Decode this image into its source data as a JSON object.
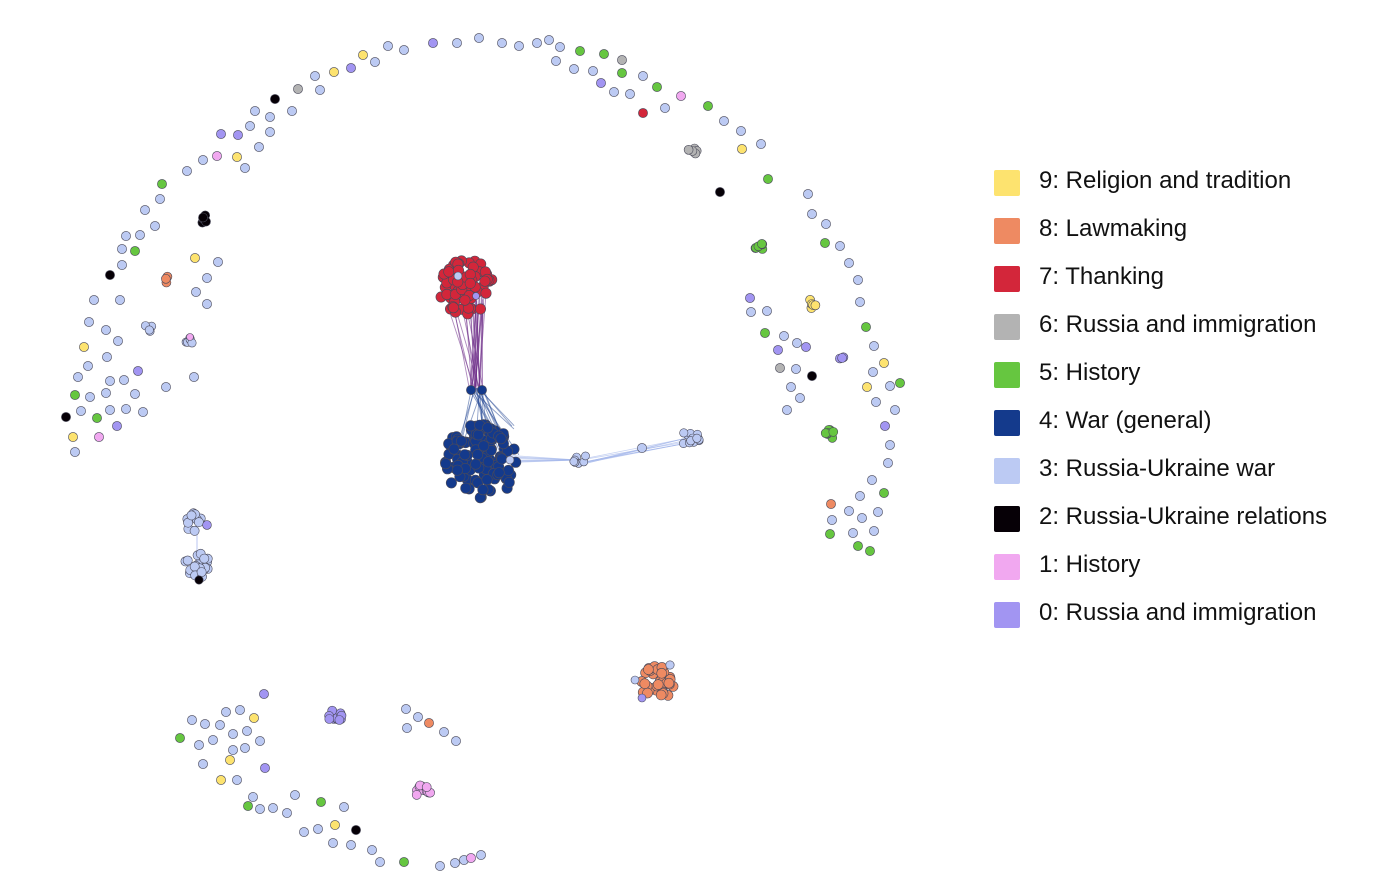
{
  "legend": {
    "items": [
      {
        "label": "9: Religion and tradition",
        "color": "#fde36f"
      },
      {
        "label": "8: Lawmaking",
        "color": "#ee8a62"
      },
      {
        "label": "7: Thanking",
        "color": "#d3263a"
      },
      {
        "label": "6: Russia and immigration",
        "color": "#b3b3b3"
      },
      {
        "label": "5: History",
        "color": "#66c640"
      },
      {
        "label": "4: War (general)",
        "color": "#143a8c"
      },
      {
        "label": "3: Russia-Ukraine war",
        "color": "#bccaf3"
      },
      {
        "label": "2: Russia-Ukraine relations",
        "color": "#060006"
      },
      {
        "label": "1: History",
        "color": "#f1a8f0"
      },
      {
        "label": "0: Russia and immigration",
        "color": "#a295f2"
      }
    ]
  }
}
